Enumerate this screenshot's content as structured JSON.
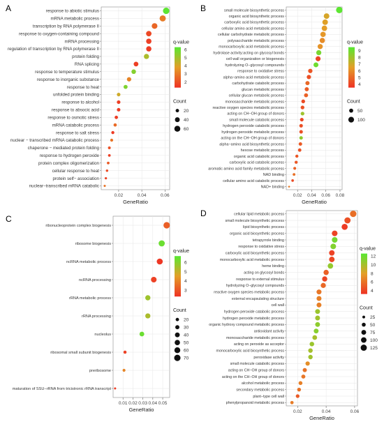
{
  "chart_data": [
    {
      "panel": "A",
      "type": "scatter",
      "xlabel": "GeneRatio",
      "xticks": [
        0.02,
        0.04,
        0.06
      ],
      "xlim": [
        0.005,
        0.064
      ],
      "color_legend": {
        "title": "q-value",
        "ticks": [
          6,
          5,
          4,
          3,
          2
        ],
        "range": [
          1.3,
          6.3
        ]
      },
      "size_legend": {
        "title": "Count",
        "ticks": [
          20,
          40,
          60
        ]
      },
      "points": [
        {
          "term": "response to abiotic stimulus",
          "ratio": 0.061,
          "count": 70,
          "q": 6.2
        },
        {
          "term": "mRNA metabolic process",
          "ratio": 0.058,
          "count": 65,
          "q": 3.0
        },
        {
          "term": "transcription by RNA polymerase II",
          "ratio": 0.051,
          "count": 55,
          "q": 2.5
        },
        {
          "term": "response to oxygen-containing compound",
          "ratio": 0.046,
          "count": 50,
          "q": 1.8
        },
        {
          "term": "mRNA processing",
          "ratio": 0.046,
          "count": 48,
          "q": 1.6
        },
        {
          "term": "regulation of transcription by RNA polymerase II",
          "ratio": 0.046,
          "count": 47,
          "q": 1.5
        },
        {
          "term": "protein folding",
          "ratio": 0.044,
          "count": 45,
          "q": 4.8
        },
        {
          "term": "RNA splicing",
          "ratio": 0.035,
          "count": 38,
          "q": 1.6
        },
        {
          "term": "response to temperature stimulus",
          "ratio": 0.033,
          "count": 35,
          "q": 5.5
        },
        {
          "term": "response to inorganic substance",
          "ratio": 0.029,
          "count": 32,
          "q": 3.2
        },
        {
          "term": "response to heat",
          "ratio": 0.026,
          "count": 28,
          "q": 5.6
        },
        {
          "term": "unfolded protein binding",
          "ratio": 0.02,
          "count": 22,
          "q": 4.2
        },
        {
          "term": "response to alcohol",
          "ratio": 0.02,
          "count": 22,
          "q": 1.6
        },
        {
          "term": "response to absocic acid",
          "ratio": 0.02,
          "count": 21,
          "q": 1.5
        },
        {
          "term": "response to osmotic stress",
          "ratio": 0.018,
          "count": 19,
          "q": 1.5
        },
        {
          "term": "mRNA catabolic process",
          "ratio": 0.017,
          "count": 18,
          "q": 2.6
        },
        {
          "term": "response to salt stress",
          "ratio": 0.015,
          "count": 16,
          "q": 1.5
        },
        {
          "term": "nuclear − transcribed mRNA catabolic process",
          "ratio": 0.014,
          "count": 15,
          "q": 2.8
        },
        {
          "term": "chaperone − mediated protein folding",
          "ratio": 0.012,
          "count": 13,
          "q": 2.0
        },
        {
          "term": "response to hydrogen peroxide",
          "ratio": 0.012,
          "count": 12,
          "q": 1.6
        },
        {
          "term": "protein complex oligomerization",
          "ratio": 0.011,
          "count": 12,
          "q": 2.2
        },
        {
          "term": "cellular response to heat",
          "ratio": 0.01,
          "count": 10,
          "q": 1.9
        },
        {
          "term": "protein self− association",
          "ratio": 0.009,
          "count": 9,
          "q": 1.7
        },
        {
          "term": "nuclear−transcribed mRNA catabolic",
          "ratio": 0.008,
          "count": 8,
          "q": 2.8
        }
      ]
    },
    {
      "panel": "B",
      "type": "scatter",
      "xlabel": "GeneRatio",
      "xticks": [
        0.02,
        0.04,
        0.06,
        0.08
      ],
      "xlim": [
        0.004,
        0.083
      ],
      "color_legend": {
        "title": "q-value",
        "ticks": [
          9,
          8,
          7,
          6,
          5,
          4
        ],
        "range": [
          3.5,
          9.5
        ]
      },
      "size_legend": {
        "title": "Count",
        "ticks": [
          50,
          100
        ]
      },
      "points": [
        {
          "term": "small molecule biosynthetic process",
          "ratio": 0.079,
          "count": 125,
          "q": 9.4
        },
        {
          "term": "organic acid biosynthetic process",
          "ratio": 0.061,
          "count": 95,
          "q": 6.8
        },
        {
          "term": "carboxylic acid biosynthetic process",
          "ratio": 0.059,
          "count": 92,
          "q": 6.6
        },
        {
          "term": "cellular amino acid metabolic process",
          "ratio": 0.058,
          "count": 90,
          "q": 6.5
        },
        {
          "term": "cellular carbohydrate metabolic process",
          "ratio": 0.056,
          "count": 86,
          "q": 6.3
        },
        {
          "term": "polysaccharide metabolic process",
          "ratio": 0.055,
          "count": 84,
          "q": 6.0
        },
        {
          "term": "monocarboxylic acid metabolic process",
          "ratio": 0.052,
          "count": 80,
          "q": 6.2
        },
        {
          "term": "hydrolase activity:acting on glycosyl bonds",
          "ratio": 0.05,
          "count": 78,
          "q": 8.8
        },
        {
          "term": "cell wall organization or biogenesis",
          "ratio": 0.049,
          "count": 76,
          "q": 4.0
        },
        {
          "term": "hydrolyzing O−glycosyl compounds",
          "ratio": 0.046,
          "count": 72,
          "q": 9.0
        },
        {
          "term": "response to oxidative stress",
          "ratio": 0.038,
          "count": 58,
          "q": 4.5
        },
        {
          "term": "alpha−amino acid metabolic process",
          "ratio": 0.036,
          "count": 55,
          "q": 4.3
        },
        {
          "term": "carbohydrate catabolic process",
          "ratio": 0.034,
          "count": 52,
          "q": 5.0
        },
        {
          "term": "glucan metabolic process",
          "ratio": 0.033,
          "count": 51,
          "q": 4.7
        },
        {
          "term": "cellular glucan metabolic process",
          "ratio": 0.032,
          "count": 49,
          "q": 4.8
        },
        {
          "term": "monosaccharide metabolic process",
          "ratio": 0.028,
          "count": 43,
          "q": 4.2
        },
        {
          "term": "reactive oxygen species metabolic process",
          "ratio": 0.027,
          "count": 42,
          "q": 4.4
        },
        {
          "term": "acting on CH−OH group of donors",
          "ratio": 0.027,
          "count": 41,
          "q": 8.0
        },
        {
          "term": "small molecule catabolic process",
          "ratio": 0.026,
          "count": 40,
          "q": 4.1
        },
        {
          "term": "hydrogen peroxide catabolic process",
          "ratio": 0.025,
          "count": 39,
          "q": 4.3
        },
        {
          "term": "hydrogen peroxide metabolic process",
          "ratio": 0.025,
          "count": 38,
          "q": 4.3
        },
        {
          "term": "acting on the CH−OH group of donors",
          "ratio": 0.025,
          "count": 38,
          "q": 8.3
        },
        {
          "term": "alpha−amino acid biosynthetic process",
          "ratio": 0.024,
          "count": 37,
          "q": 4.6
        },
        {
          "term": "hexose metabolic process",
          "ratio": 0.023,
          "count": 35,
          "q": 4.4
        },
        {
          "term": "organic acid catabolic process",
          "ratio": 0.019,
          "count": 29,
          "q": 4.5
        },
        {
          "term": "carboxylic acid catabolic process",
          "ratio": 0.018,
          "count": 28,
          "q": 4.5
        },
        {
          "term": "aromatic amino acid family metabolic process",
          "ratio": 0.016,
          "count": 24,
          "q": 4.8
        },
        {
          "term": "NAD binding",
          "ratio": 0.015,
          "count": 22,
          "q": 5.2
        },
        {
          "term": "cellular amino acid catabolic process",
          "ratio": 0.013,
          "count": 20,
          "q": 4.2
        },
        {
          "term": "NAD+ binding",
          "ratio": 0.008,
          "count": 10,
          "q": 5.5
        }
      ]
    },
    {
      "panel": "C",
      "type": "scatter",
      "xlabel": "GeneRatio",
      "xticks": [
        0.01,
        0.02,
        0.03,
        0.04,
        0.05
      ],
      "xlim": [
        0.0,
        0.057
      ],
      "color_legend": {
        "title": "q-value",
        "ticks": [
          6,
          5,
          4,
          3
        ],
        "range": [
          2.3,
          6.7
        ]
      },
      "size_legend": {
        "title": "Count",
        "ticks": [
          20,
          30,
          40,
          50,
          60,
          70
        ]
      },
      "points": [
        {
          "term": "ribonucleoprotein complex biogenesis",
          "ratio": 0.054,
          "count": 72,
          "q": 3.2
        },
        {
          "term": "ribosome biogenesis",
          "ratio": 0.049,
          "count": 66,
          "q": 6.4
        },
        {
          "term": "ncRNA metabolic process",
          "ratio": 0.047,
          "count": 63,
          "q": 2.4
        },
        {
          "term": "ncRNA processing",
          "ratio": 0.041,
          "count": 55,
          "q": 2.6
        },
        {
          "term": "rRNA metabolic process",
          "ratio": 0.035,
          "count": 47,
          "q": 5.6
        },
        {
          "term": "rRNA processing",
          "ratio": 0.035,
          "count": 46,
          "q": 5.4
        },
        {
          "term": "nucleolus",
          "ratio": 0.029,
          "count": 39,
          "q": 6.4
        },
        {
          "term": "ribosomal small subunit biogenesis",
          "ratio": 0.012,
          "count": 17,
          "q": 2.6
        },
        {
          "term": "preribosome",
          "ratio": 0.011,
          "count": 15,
          "q": 4.0
        },
        {
          "term": "maturation of SSU−rRNA from tricistronic rRNA transcript",
          "ratio": 0.002,
          "count": 8,
          "q": 2.5
        }
      ]
    },
    {
      "panel": "D",
      "type": "scatter",
      "xlabel": "GeneRatio",
      "xticks": [
        0.02,
        0.04,
        0.06
      ],
      "xlim": [
        0.012,
        0.062
      ],
      "color_legend": {
        "title": "q-value",
        "ticks": [
          12,
          10,
          8,
          6,
          4
        ],
        "range": [
          3.2,
          12.6
        ]
      },
      "size_legend": {
        "title": "Count",
        "ticks": [
          25,
          50,
          75,
          100,
          125
        ]
      },
      "points": [
        {
          "term": "cellular lipid metabolic process",
          "ratio": 0.059,
          "count": 135,
          "q": 5.8
        },
        {
          "term": "small molecule biosynthetic process",
          "ratio": 0.055,
          "count": 125,
          "q": 4.5
        },
        {
          "term": "lipid biosynthetic process",
          "ratio": 0.053,
          "count": 120,
          "q": 3.6
        },
        {
          "term": "organic acid biosynthetic process",
          "ratio": 0.046,
          "count": 105,
          "q": 4.0
        },
        {
          "term": "tetrapyrrole binding",
          "ratio": 0.046,
          "count": 104,
          "q": 11.6
        },
        {
          "term": "response to oxidative stress",
          "ratio": 0.045,
          "count": 102,
          "q": 11.2
        },
        {
          "term": "carboxylic acid biosynthetic process",
          "ratio": 0.044,
          "count": 100,
          "q": 3.9
        },
        {
          "term": "monocarboxylic acid metabolic process",
          "ratio": 0.044,
          "count": 99,
          "q": 4.1
        },
        {
          "term": "heme binding",
          "ratio": 0.043,
          "count": 97,
          "q": 10.6
        },
        {
          "term": "acting on glycosyl bonds",
          "ratio": 0.04,
          "count": 90,
          "q": 5.2
        },
        {
          "term": "response to external stimulus",
          "ratio": 0.039,
          "count": 88,
          "q": 4.0
        },
        {
          "term": "hydrolyzing O−glycosyl compounds",
          "ratio": 0.038,
          "count": 85,
          "q": 5.5
        },
        {
          "term": "reactive oxygen species metabolic process",
          "ratio": 0.035,
          "count": 80,
          "q": 6.2
        },
        {
          "term": "external encapsulating structure",
          "ratio": 0.035,
          "count": 79,
          "q": 6.6
        },
        {
          "term": "cell wall",
          "ratio": 0.035,
          "count": 78,
          "q": 6.6
        },
        {
          "term": "hydrogen peroxide catabolic process",
          "ratio": 0.034,
          "count": 77,
          "q": 10.4
        },
        {
          "term": "hydrogen peroxide metabolic process",
          "ratio": 0.034,
          "count": 77,
          "q": 10.2
        },
        {
          "term": "organic hydroxy compound metabolic process",
          "ratio": 0.034,
          "count": 76,
          "q": 10.8
        },
        {
          "term": "antioxidant activity",
          "ratio": 0.033,
          "count": 75,
          "q": 11.0
        },
        {
          "term": "monosaccharide metabolic process",
          "ratio": 0.032,
          "count": 73,
          "q": 10.0
        },
        {
          "term": "acting on peroxide as acceptor",
          "ratio": 0.03,
          "count": 68,
          "q": 10.4
        },
        {
          "term": "monocarboxylic acid biosynthetic process",
          "ratio": 0.029,
          "count": 66,
          "q": 10.0
        },
        {
          "term": "peroxidase activity",
          "ratio": 0.029,
          "count": 65,
          "q": 10.2
        },
        {
          "term": "small molecule catabolic process",
          "ratio": 0.027,
          "count": 60,
          "q": 7.2
        },
        {
          "term": "acting on CH−OH group of donors",
          "ratio": 0.025,
          "count": 56,
          "q": 6.0
        },
        {
          "term": "acting on the CH−OH group of donors",
          "ratio": 0.024,
          "count": 54,
          "q": 6.2
        },
        {
          "term": "alcohol metabolic process",
          "ratio": 0.022,
          "count": 49,
          "q": 6.6
        },
        {
          "term": "secondary metabolic process",
          "ratio": 0.021,
          "count": 47,
          "q": 6.0
        },
        {
          "term": "plant−type cell wall",
          "ratio": 0.02,
          "count": 45,
          "q": 5.0
        },
        {
          "term": "phenylpropanoid metabolic process",
          "ratio": 0.016,
          "count": 36,
          "q": 6.4
        }
      ]
    }
  ]
}
